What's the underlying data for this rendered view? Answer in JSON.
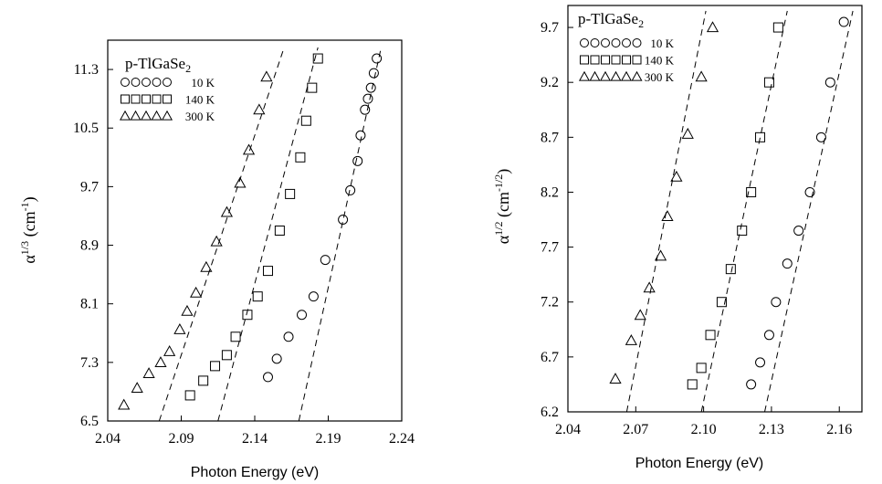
{
  "chart_data": [
    {
      "type": "scatter",
      "xlabel": "Photon Energy (eV)",
      "ylabel_base": "α",
      "ylabel_exp": "1/3",
      "ylabel_unit": "(cm",
      "ylabel_unit_exp": "-1",
      "ylabel_close": ")",
      "xlim": [
        2.04,
        2.24
      ],
      "ylim": [
        6.5,
        11.7
      ],
      "xticks": [
        "2.04",
        "2.09",
        "2.14",
        "2.19",
        "2.24"
      ],
      "yticks": [
        "6.5",
        "7.3",
        "8.1",
        "8.9",
        "9.7",
        "10.5",
        "11.3"
      ],
      "xtick_values": [
        2.04,
        2.09,
        2.14,
        2.19,
        2.24
      ],
      "ytick_values": [
        6.5,
        7.3,
        8.1,
        8.9,
        9.7,
        10.5,
        11.3
      ],
      "legend_position": "top-left",
      "legend_title_base": "p-TlGaSe",
      "legend_title_sub": "2",
      "series": [
        {
          "name": "10 K",
          "marker": "circle",
          "x": [
            2.149,
            2.155,
            2.163,
            2.172,
            2.18,
            2.188,
            2.2,
            2.205,
            2.21,
            2.212,
            2.215,
            2.217,
            2.219,
            2.221,
            2.223
          ],
          "y": [
            7.1,
            7.35,
            7.65,
            7.95,
            8.2,
            8.7,
            9.25,
            9.65,
            10.05,
            10.4,
            10.75,
            10.9,
            11.05,
            11.25,
            11.45
          ],
          "fit": [
            [
              2.17,
              6.5
            ],
            [
              2.226,
              11.6
            ]
          ]
        },
        {
          "name": "140 K",
          "marker": "square",
          "x": [
            2.096,
            2.105,
            2.113,
            2.121,
            2.127,
            2.135,
            2.142,
            2.149,
            2.157,
            2.164,
            2.171,
            2.175,
            2.179,
            2.183
          ],
          "y": [
            6.85,
            7.05,
            7.25,
            7.4,
            7.65,
            7.95,
            8.2,
            8.55,
            9.1,
            9.6,
            10.1,
            10.6,
            11.05,
            11.45
          ],
          "fit": [
            [
              2.115,
              6.5
            ],
            [
              2.183,
              11.6
            ]
          ]
        },
        {
          "name": "300 K",
          "marker": "triangle",
          "x": [
            2.051,
            2.06,
            2.068,
            2.076,
            2.082,
            2.089,
            2.094,
            2.1,
            2.107,
            2.114,
            2.121,
            2.13,
            2.136,
            2.143,
            2.148
          ],
          "y": [
            6.72,
            6.95,
            7.15,
            7.3,
            7.45,
            7.75,
            8.0,
            8.25,
            8.6,
            8.95,
            9.35,
            9.75,
            10.2,
            10.75,
            11.2
          ],
          "fit": [
            [
              2.075,
              6.5
            ],
            [
              2.16,
              11.6
            ]
          ]
        }
      ]
    },
    {
      "type": "scatter",
      "xlabel": "Photon Energy (eV)",
      "ylabel_base": "α",
      "ylabel_exp": "1/2",
      "ylabel_unit": "(cm",
      "ylabel_unit_exp": "-1/2",
      "ylabel_close": ")",
      "xlim": [
        2.04,
        2.17
      ],
      "ylim": [
        6.2,
        9.9
      ],
      "xticks": [
        "2.04",
        "2.07",
        "2.10",
        "2.13",
        "2.16"
      ],
      "yticks": [
        "6.2",
        "6.7",
        "7.2",
        "7.7",
        "8.2",
        "8.7",
        "9.2",
        "9.7"
      ],
      "xtick_values": [
        2.04,
        2.07,
        2.1,
        2.13,
        2.16
      ],
      "ytick_values": [
        6.2,
        6.7,
        7.2,
        7.7,
        8.2,
        8.7,
        9.2,
        9.7
      ],
      "legend_position": "top-left",
      "legend_title_base": "p-TlGaSe",
      "legend_title_sub": "2",
      "series": [
        {
          "name": "10 K",
          "marker": "circle",
          "x": [
            2.121,
            2.125,
            2.129,
            2.132,
            2.137,
            2.142,
            2.147,
            2.152,
            2.156,
            2.162
          ],
          "y": [
            6.45,
            6.65,
            6.9,
            7.2,
            7.55,
            7.85,
            8.2,
            8.7,
            9.2,
            9.75
          ],
          "fit": [
            [
              2.127,
              6.2
            ],
            [
              2.166,
              9.85
            ]
          ]
        },
        {
          "name": "140 K",
          "marker": "square",
          "x": [
            2.095,
            2.099,
            2.103,
            2.108,
            2.112,
            2.117,
            2.121,
            2.125,
            2.129,
            2.133
          ],
          "y": [
            6.45,
            6.6,
            6.9,
            7.2,
            7.5,
            7.85,
            8.2,
            8.7,
            9.2,
            9.7
          ],
          "fit": [
            [
              2.099,
              6.2
            ],
            [
              2.137,
              9.85
            ]
          ]
        },
        {
          "name": "300 K",
          "marker": "triangle",
          "x": [
            2.061,
            2.068,
            2.072,
            2.076,
            2.081,
            2.084,
            2.088,
            2.093,
            2.099,
            2.104
          ],
          "y": [
            6.5,
            6.85,
            7.08,
            7.33,
            7.62,
            7.98,
            8.34,
            8.73,
            9.25,
            9.7
          ],
          "fit": [
            [
              2.066,
              6.2
            ],
            [
              2.101,
              9.85
            ]
          ]
        }
      ]
    }
  ]
}
